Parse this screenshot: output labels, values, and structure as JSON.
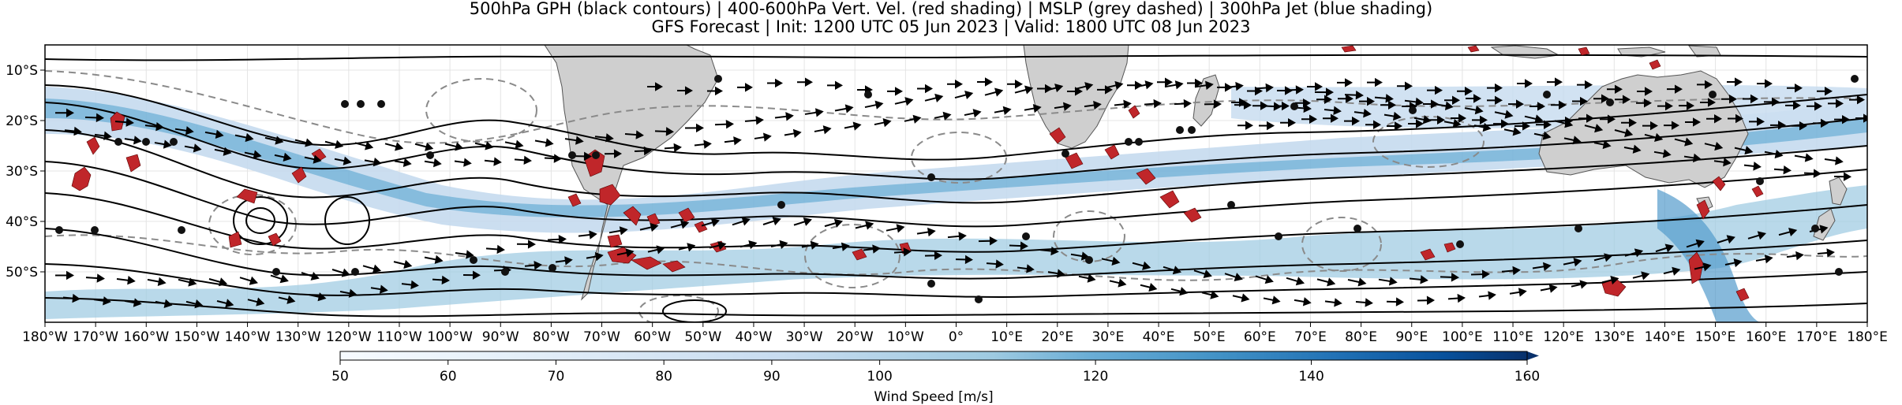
{
  "title": {
    "line1": "500hPa GPH (black contours) | 400-600hPa Vert. Vel. (red shading) | MSLP (grey dashed) | 300hPa Jet (blue shading)",
    "line2": "GFS Forecast | Init: 1200 UTC 05 Jun 2023 | Valid: 1800 UTC 08 Jun 2023"
  },
  "map": {
    "lon_range": [
      -180,
      180
    ],
    "lat_range": [
      -60,
      -5
    ],
    "x_tick_labels": [
      "180°W",
      "170°W",
      "160°W",
      "150°W",
      "140°W",
      "130°W",
      "120°W",
      "110°W",
      "100°W",
      "90°W",
      "80°W",
      "70°W",
      "60°W",
      "50°W",
      "40°W",
      "30°W",
      "20°W",
      "10°W",
      "0°",
      "10°E",
      "20°E",
      "30°E",
      "40°E",
      "50°E",
      "60°E",
      "70°E",
      "80°E",
      "90°E",
      "100°E",
      "110°E",
      "120°E",
      "130°E",
      "140°E",
      "150°E",
      "160°E",
      "170°E",
      "180°E"
    ],
    "y_tick_labels": [
      "10°S",
      "20°S",
      "30°S",
      "40°S",
      "50°S"
    ],
    "y_tick_values": [
      -10,
      -20,
      -30,
      -40,
      -50
    ],
    "colors": {
      "land": "#cfcfcf",
      "ocean": "#ffffff",
      "gph_contour": "#000000",
      "mslp_contour": "#8a8a8a",
      "vertical_velocity": "#c0262a",
      "jet_light": "#c6dbef",
      "jet_mid": "#6baed6",
      "jet_dark": "#08306b"
    }
  },
  "colorbar": {
    "label": "Wind Speed [m/s]",
    "range": [
      50,
      160
    ],
    "ticks": [
      "50",
      "60",
      "70",
      "80",
      "90",
      "100",
      "120",
      "140",
      "160"
    ],
    "extend": "max",
    "color_stops": [
      "#f7fbff",
      "#deebf7",
      "#c6dbef",
      "#9ecae1",
      "#6baed6",
      "#4292c6",
      "#2171b5",
      "#08519c",
      "#08306b"
    ]
  }
}
